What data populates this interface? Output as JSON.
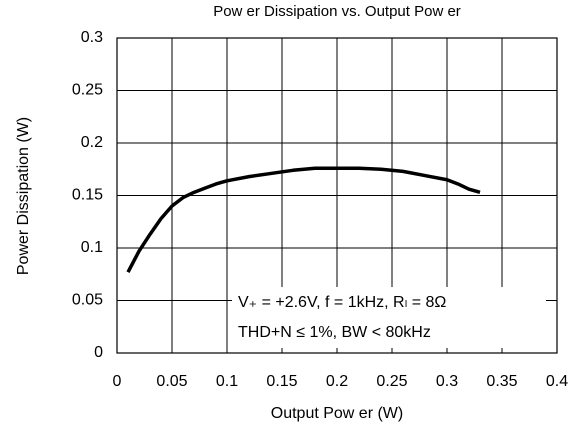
{
  "chart_data": {
    "type": "line",
    "title": "Pow er Dissipation vs. Output Pow er",
    "xlabel": "Output Pow er (W)",
    "ylabel": "Power Dissipation (W)",
    "annotations": [
      "V₊ = +2.6V, f = 1kHz, Rₗ = 8Ω",
      "THD+N ≤ 1%, BW < 80kHz"
    ],
    "x": [
      0.01,
      0.02,
      0.03,
      0.04,
      0.05,
      0.06,
      0.07,
      0.08,
      0.09,
      0.1,
      0.12,
      0.14,
      0.16,
      0.18,
      0.2,
      0.22,
      0.24,
      0.26,
      0.28,
      0.3,
      0.31,
      0.32,
      0.33
    ],
    "series": [
      {
        "color": "#000000",
        "values": [
          0.077,
          0.097,
          0.113,
          0.128,
          0.14,
          0.148,
          0.153,
          0.157,
          0.161,
          0.164,
          0.168,
          0.171,
          0.174,
          0.176,
          0.176,
          0.176,
          0.175,
          0.173,
          0.169,
          0.165,
          0.161,
          0.156,
          0.153
        ]
      }
    ],
    "xlim": [
      0,
      0.4
    ],
    "xticks": [
      0,
      0.05,
      0.1,
      0.15,
      0.2,
      0.25,
      0.3,
      0.35,
      0.4
    ],
    "ylim": [
      0,
      0.3
    ],
    "yticks": [
      0,
      0.05,
      0.1,
      0.15,
      0.2,
      0.25,
      0.3
    ],
    "grid": true
  }
}
